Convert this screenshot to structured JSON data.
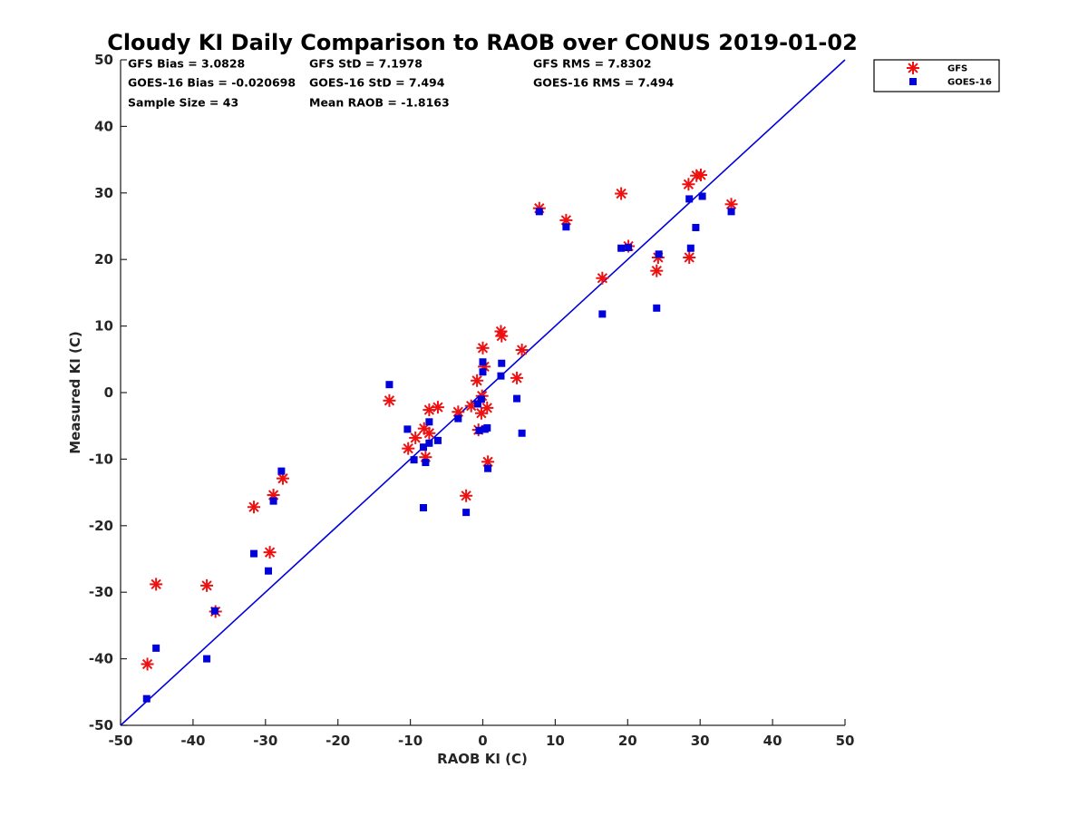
{
  "chart_data": {
    "type": "scatter",
    "title": "Cloudy KI Daily Comparison to RAOB over CONUS 2019-01-02",
    "xlabel": "RAOB KI (C)",
    "ylabel": "Measured KI (C)",
    "xlim": [
      -50,
      50
    ],
    "ylim": [
      -50,
      50
    ],
    "xticks": [
      -50,
      -40,
      -30,
      -20,
      -10,
      0,
      10,
      20,
      30,
      40,
      50
    ],
    "yticks": [
      -50,
      -40,
      -30,
      -20,
      -10,
      0,
      10,
      20,
      30,
      40,
      50
    ],
    "grid": false,
    "legend_position": "top-right, outside plot",
    "reference_line": {
      "from": [
        -50,
        -50
      ],
      "to": [
        50,
        50
      ],
      "color": "#0000dd"
    },
    "stats": [
      [
        "GFS Bias = 3.0828",
        "GFS StD = 7.1978",
        "GFS RMS = 7.8302"
      ],
      [
        "GOES-16 Bias = -0.020698",
        "GOES-16 StD = 7.494",
        "GOES-16 RMS = 7.494"
      ],
      [
        "Sample Size = 43",
        "Mean RAOB = -1.8163",
        ""
      ]
    ],
    "series": [
      {
        "name": "GFS",
        "marker": "asterisk",
        "color": "#ee1111",
        "points": [
          [
            -46.3,
            -40.8
          ],
          [
            -45.1,
            -28.8
          ],
          [
            -38.1,
            -29.0
          ],
          [
            -36.9,
            -32.9
          ],
          [
            -31.6,
            -17.2
          ],
          [
            -29.4,
            -24.0
          ],
          [
            -28.9,
            -15.4
          ],
          [
            -27.6,
            -12.9
          ],
          [
            -12.9,
            -1.2
          ],
          [
            -10.3,
            -8.4
          ],
          [
            -9.3,
            -6.8
          ],
          [
            -8.1,
            -5.4
          ],
          [
            -7.9,
            -9.7
          ],
          [
            -7.4,
            -6.1
          ],
          [
            -7.4,
            -2.6
          ],
          [
            -6.2,
            -2.2
          ],
          [
            -3.4,
            -2.9
          ],
          [
            -2.3,
            -15.5
          ],
          [
            -0.8,
            1.8
          ],
          [
            -0.6,
            -5.6
          ],
          [
            -0.2,
            -3.1
          ],
          [
            -0.1,
            -0.5
          ],
          [
            0.0,
            6.7
          ],
          [
            0.2,
            3.9
          ],
          [
            0.6,
            -2.3
          ],
          [
            0.7,
            -10.4
          ],
          [
            2.5,
            9.2
          ],
          [
            2.6,
            8.5
          ],
          [
            4.7,
            2.2
          ],
          [
            5.4,
            6.4
          ],
          [
            7.8,
            27.7
          ],
          [
            11.5,
            25.9
          ],
          [
            16.5,
            17.2
          ],
          [
            19.1,
            29.9
          ],
          [
            20.1,
            22.0
          ],
          [
            24.0,
            18.3
          ],
          [
            24.2,
            20.3
          ],
          [
            28.5,
            20.3
          ],
          [
            28.4,
            31.3
          ],
          [
            29.5,
            32.6
          ],
          [
            30.1,
            32.7
          ],
          [
            34.3,
            28.3
          ],
          [
            -1.6,
            -2.0
          ]
        ]
      },
      {
        "name": "GOES-16",
        "marker": "square",
        "color": "#0000dd",
        "points": [
          [
            -46.4,
            -46.0
          ],
          [
            -45.1,
            -38.4
          ],
          [
            -38.1,
            -40.0
          ],
          [
            -37.0,
            -32.8
          ],
          [
            -31.6,
            -24.2
          ],
          [
            -29.6,
            -26.8
          ],
          [
            -28.9,
            -16.3
          ],
          [
            -27.8,
            -11.8
          ],
          [
            -12.9,
            1.2
          ],
          [
            -10.4,
            -5.5
          ],
          [
            -9.5,
            -10.1
          ],
          [
            -8.2,
            -17.3
          ],
          [
            -8.2,
            -8.2
          ],
          [
            -7.9,
            -10.5
          ],
          [
            -7.4,
            -4.4
          ],
          [
            -7.4,
            -7.6
          ],
          [
            -6.2,
            -7.2
          ],
          [
            -3.4,
            -3.9
          ],
          [
            -2.3,
            -18.0
          ],
          [
            -0.7,
            -1.7
          ],
          [
            -0.5,
            -5.7
          ],
          [
            -0.2,
            -1.0
          ],
          [
            0.0,
            3.1
          ],
          [
            0.0,
            4.6
          ],
          [
            0.3,
            -5.5
          ],
          [
            0.6,
            -5.3
          ],
          [
            0.7,
            -11.4
          ],
          [
            2.5,
            2.5
          ],
          [
            2.6,
            4.4
          ],
          [
            4.7,
            -0.9
          ],
          [
            5.4,
            -6.1
          ],
          [
            7.8,
            27.2
          ],
          [
            11.5,
            24.9
          ],
          [
            16.5,
            11.8
          ],
          [
            19.1,
            21.7
          ],
          [
            20.1,
            21.8
          ],
          [
            24.0,
            12.7
          ],
          [
            24.3,
            20.8
          ],
          [
            28.5,
            29.1
          ],
          [
            28.7,
            21.7
          ],
          [
            29.4,
            24.8
          ],
          [
            30.3,
            29.5
          ],
          [
            34.3,
            27.2
          ]
        ]
      }
    ]
  }
}
